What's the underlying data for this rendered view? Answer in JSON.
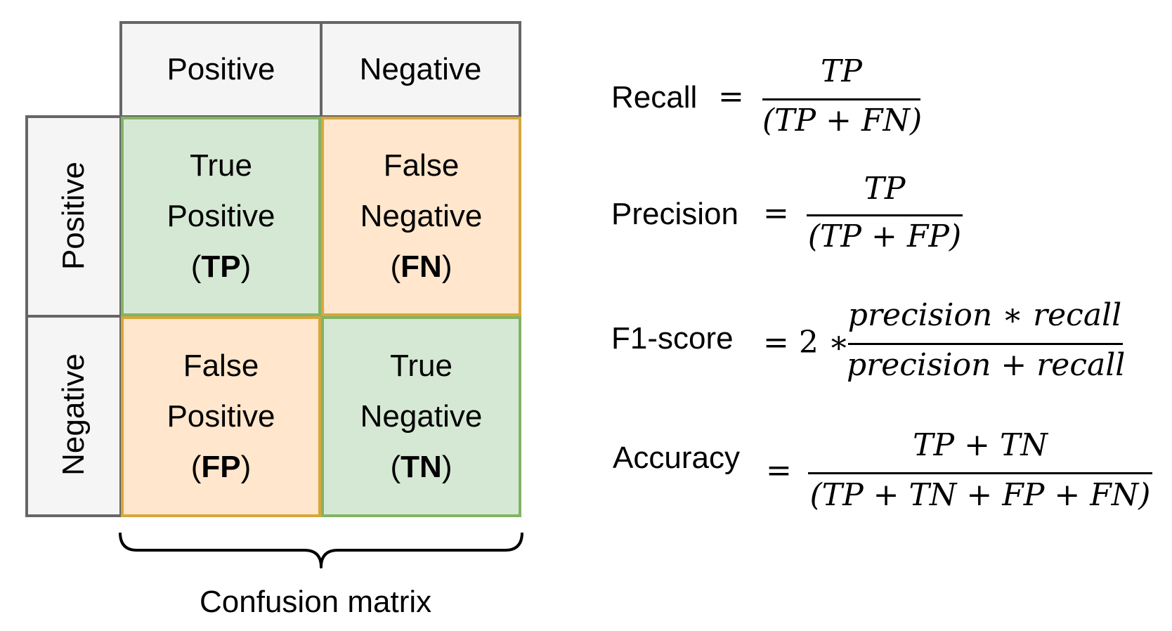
{
  "matrix": {
    "col_headers": [
      "Positive",
      "Negative"
    ],
    "row_headers": [
      "Positive",
      "Negative"
    ],
    "cells": {
      "tp": {
        "line1": "True",
        "line2": "Positive",
        "abbr": "TP"
      },
      "fn": {
        "line1": "False",
        "line2": "Negative",
        "abbr": "FN"
      },
      "fp": {
        "line1": "False",
        "line2": "Positive",
        "abbr": "FP"
      },
      "tn": {
        "line1": "True",
        "line2": "Negative",
        "abbr": "TN"
      }
    },
    "caption": "Confusion matrix",
    "colors": {
      "header_fill": "#f5f5f5",
      "header_border": "#666666",
      "true_fill": "#d5e8d4",
      "true_border": "#82b366",
      "false_fill": "#ffe6cc",
      "false_border": "#d6a73a"
    }
  },
  "formulas": {
    "recall": {
      "name": "Recall",
      "eq": "=",
      "numerator": "TP",
      "denominator": "(TP + FN)"
    },
    "precision": {
      "name": "Precision",
      "eq": "=",
      "numerator": "TP",
      "denominator": "(TP + FP)"
    },
    "f1": {
      "name": "F1-score",
      "eq": "= 2 ∗",
      "numerator": "precision  ∗ recall",
      "denominator": "precision + recall"
    },
    "accuracy": {
      "name": "Accuracy",
      "eq": "=",
      "numerator": "TP + TN",
      "denominator": "(TP + TN  +  FP + FN)"
    }
  }
}
